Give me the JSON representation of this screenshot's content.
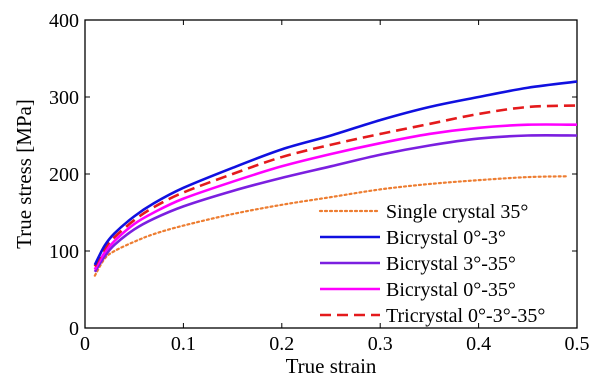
{
  "chart_data": {
    "type": "line",
    "xlabel": "True strain",
    "ylabel": "True stress [MPa]",
    "xlim": [
      0,
      0.5
    ],
    "ylim": [
      0,
      400
    ],
    "xticks": [
      0,
      0.1,
      0.2,
      0.3,
      0.4,
      0.5
    ],
    "yticks": [
      0,
      100,
      200,
      300,
      400
    ],
    "grid": false,
    "legend_position": "bottom-right",
    "series": [
      {
        "name": "Single crystal 35°",
        "color": "#ED7D31",
        "style": "dotted",
        "x": [
          0.01,
          0.02,
          0.03,
          0.05,
          0.07,
          0.1,
          0.15,
          0.2,
          0.25,
          0.3,
          0.35,
          0.4,
          0.45,
          0.49
        ],
        "y": [
          68,
          90,
          100,
          112,
          122,
          133,
          148,
          160,
          170,
          180,
          187,
          192,
          196,
          197
        ]
      },
      {
        "name": "Bicrystal 0°-3°",
        "color": "#1010E0",
        "style": "solid",
        "x": [
          0.01,
          0.02,
          0.03,
          0.05,
          0.07,
          0.1,
          0.15,
          0.2,
          0.25,
          0.3,
          0.35,
          0.4,
          0.45,
          0.5
        ],
        "y": [
          82,
          107,
          123,
          145,
          162,
          182,
          208,
          232,
          250,
          270,
          287,
          300,
          312,
          320
        ]
      },
      {
        "name": "Bicrystal 3°-35°",
        "color": "#7B1FE0",
        "style": "solid",
        "x": [
          0.01,
          0.02,
          0.03,
          0.05,
          0.07,
          0.1,
          0.15,
          0.2,
          0.25,
          0.3,
          0.35,
          0.4,
          0.45,
          0.5
        ],
        "y": [
          73,
          93,
          108,
          128,
          142,
          158,
          178,
          195,
          210,
          225,
          237,
          246,
          250,
          250
        ]
      },
      {
        "name": "Bicrystal 0°-35°",
        "color": "#FF00FF",
        "style": "solid",
        "x": [
          0.01,
          0.02,
          0.03,
          0.05,
          0.07,
          0.1,
          0.15,
          0.2,
          0.25,
          0.3,
          0.35,
          0.4,
          0.45,
          0.5
        ],
        "y": [
          76,
          98,
          113,
          135,
          150,
          168,
          190,
          210,
          226,
          240,
          252,
          260,
          264,
          264
        ]
      },
      {
        "name": "Tricrystal 0°-3°-35°",
        "color": "#E41A1C",
        "style": "dashed",
        "x": [
          0.01,
          0.02,
          0.03,
          0.05,
          0.07,
          0.1,
          0.15,
          0.2,
          0.25,
          0.3,
          0.35,
          0.4,
          0.45,
          0.5
        ],
        "y": [
          80,
          103,
          118,
          140,
          157,
          176,
          200,
          222,
          238,
          252,
          265,
          278,
          287,
          289
        ]
      }
    ]
  }
}
